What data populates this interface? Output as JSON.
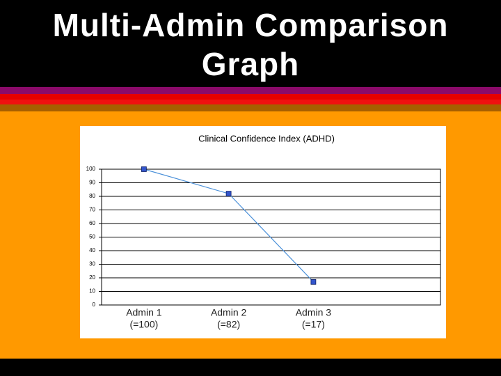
{
  "slide_title": "Multi-Admin Comparison Graph",
  "chart_data": {
    "type": "line",
    "title": "Clinical Confidence Index (ADHD)",
    "categories": [
      "Admin 1",
      "Admin 2",
      "Admin 3",
      null
    ],
    "category_notes": [
      "(=100)",
      "(=82)",
      "(=17)",
      null
    ],
    "series": [
      {
        "color": "#4a90d9",
        "values": [
          100,
          82,
          17,
          null
        ]
      }
    ],
    "ylim": [
      0,
      100
    ],
    "yticks": [
      0,
      10,
      20,
      30,
      40,
      50,
      60,
      70,
      80,
      90,
      100
    ],
    "grid": true
  }
}
